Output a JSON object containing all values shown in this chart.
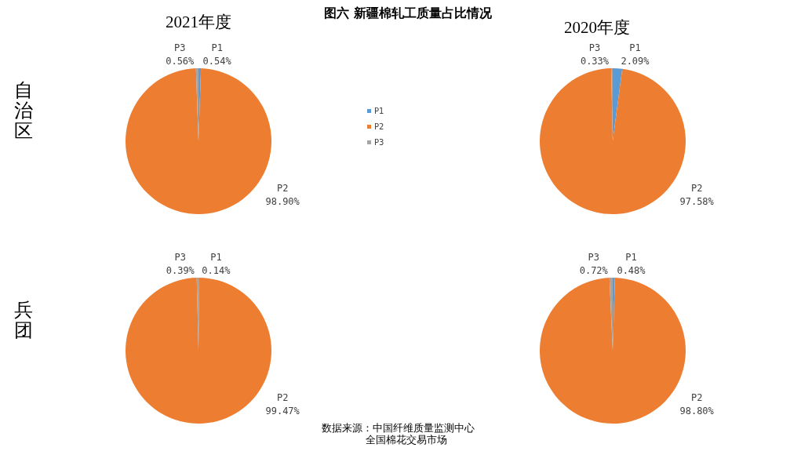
{
  "chart_data": [
    {
      "type": "pie",
      "title": "2021年度",
      "ylabel": "自治区",
      "categories": [
        "P1",
        "P2",
        "P3"
      ],
      "values": [
        0.54,
        98.9,
        0.56
      ],
      "value_labels": [
        "0.54%",
        "98.90%",
        "0.56%"
      ],
      "colors": [
        "#5b9bd5",
        "#ed7d31",
        "#a5a5a5"
      ],
      "legend": "right",
      "annotations": [
        "图六 新疆棉轧工质量占比情况"
      ]
    },
    {
      "type": "pie",
      "title": "2020年度",
      "categories": [
        "P1",
        "P2",
        "P3"
      ],
      "values": [
        2.09,
        97.58,
        0.33
      ],
      "value_labels": [
        "2.09%",
        "97.58%",
        "0.33%"
      ],
      "colors": [
        "#5b9bd5",
        "#ed7d31",
        "#a5a5a5"
      ]
    },
    {
      "type": "pie",
      "ylabel": "兵团",
      "categories": [
        "P1",
        "P2",
        "P3"
      ],
      "values": [
        0.14,
        99.47,
        0.39
      ],
      "value_labels": [
        "0.14%",
        "99.47%",
        "0.39%"
      ],
      "colors": [
        "#5b9bd5",
        "#ed7d31",
        "#a5a5a5"
      ]
    },
    {
      "type": "pie",
      "categories": [
        "P1",
        "P2",
        "P3"
      ],
      "values": [
        0.48,
        98.8,
        0.72
      ],
      "value_labels": [
        "0.48%",
        "98.80%",
        "0.72%"
      ],
      "colors": [
        "#5b9bd5",
        "#ed7d31",
        "#a5a5a5"
      ],
      "annotations": [
        "数据来源：中国纤维质量监测中心",
        "全国棉花交易市场"
      ]
    }
  ]
}
